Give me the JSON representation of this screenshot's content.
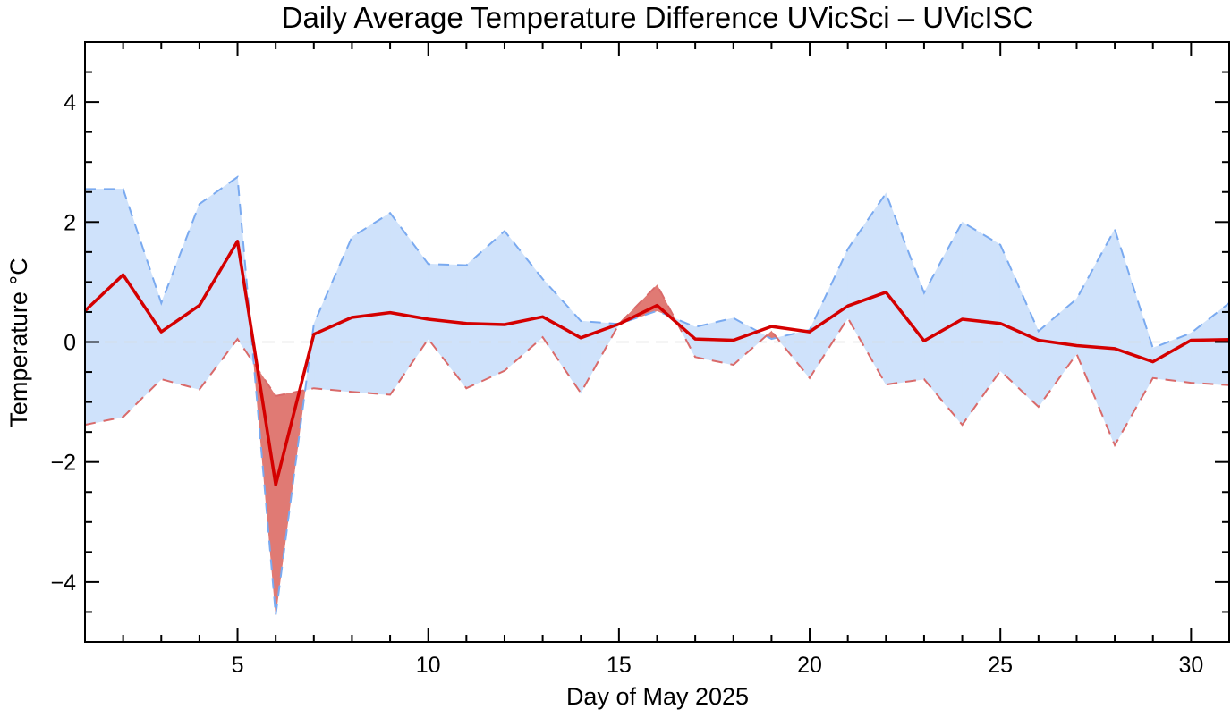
{
  "chart_data": {
    "type": "line",
    "title": "Daily Average Temperature Difference UVicSci – UVicISC",
    "xlabel": "Day of May 2025",
    "ylabel": "Temperature °C",
    "xlim": [
      1,
      31
    ],
    "ylim": [
      -5,
      5
    ],
    "x_ticks": [
      5,
      10,
      15,
      20,
      25,
      30
    ],
    "x_tick_labels": [
      "5",
      "10",
      "15",
      "20",
      "25",
      "30"
    ],
    "y_ticks": [
      -4,
      -2,
      0,
      2,
      4
    ],
    "y_tick_labels": [
      "−4",
      "−2",
      "0",
      "2",
      "4"
    ],
    "grid": false,
    "zero_line": true,
    "colors": {
      "mean_line": "#d40000",
      "upper_band": "#cfe2fb",
      "upper_line": "#7aaaf0",
      "lower_band": "#e07a74",
      "lower_line": "#d96a6a",
      "zero_line": "#d8d8d8"
    },
    "x": [
      1,
      2,
      3,
      4,
      5,
      6,
      7,
      8,
      9,
      10,
      11,
      12,
      13,
      14,
      15,
      16,
      17,
      18,
      19,
      20,
      21,
      22,
      23,
      24,
      25,
      26,
      27,
      28,
      29,
      30,
      31
    ],
    "series": [
      {
        "role": "mean",
        "values": [
          0.52,
          1.12,
          0.17,
          0.61,
          1.68,
          -2.38,
          0.13,
          0.41,
          0.49,
          0.38,
          0.31,
          0.29,
          0.42,
          0.07,
          0.3,
          0.61,
          0.05,
          0.03,
          0.26,
          0.17,
          0.6,
          0.83,
          0.02,
          0.38,
          0.31,
          0.03,
          -0.06,
          -0.11,
          -0.33,
          0.03,
          0.04
        ]
      },
      {
        "role": "upper",
        "values": [
          2.55,
          2.55,
          0.65,
          2.3,
          2.75,
          -4.55,
          0.3,
          1.75,
          2.15,
          1.3,
          1.28,
          1.85,
          1.05,
          0.35,
          0.3,
          0.52,
          0.25,
          0.4,
          0.05,
          0.2,
          1.55,
          2.48,
          0.82,
          2.0,
          1.62,
          0.18,
          0.72,
          1.88,
          -0.1,
          0.15,
          0.65
        ]
      },
      {
        "role": "lower",
        "values": [
          -1.38,
          -1.25,
          -0.62,
          -0.79,
          0.05,
          -0.9,
          -0.77,
          -0.83,
          -0.88,
          0.05,
          -0.77,
          -0.48,
          0.08,
          -0.85,
          0.3,
          0.95,
          -0.25,
          -0.38,
          0.18,
          -0.6,
          0.4,
          -0.71,
          -0.62,
          -1.38,
          -0.48,
          -1.08,
          -0.2,
          -1.72,
          -0.6,
          -0.68,
          -0.72
        ]
      }
    ]
  }
}
